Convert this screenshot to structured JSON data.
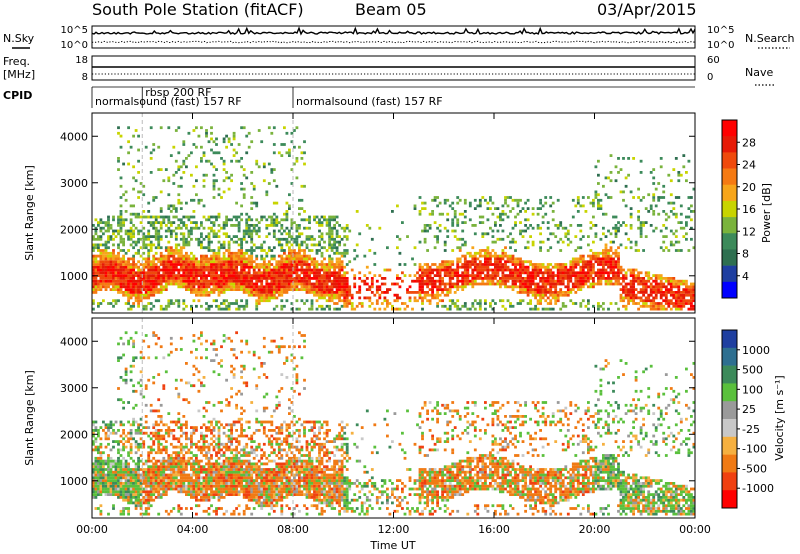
{
  "header": {
    "station": "South Pole Station (fitACF)",
    "beam": "Beam 05",
    "date": "03/Apr/2015"
  },
  "noise_panel": {
    "left_label": "N.Sky",
    "right_label": "N.Search",
    "left_ticks": [
      "10^5",
      "10^0"
    ],
    "right_ticks": [
      "10^5",
      "10^0"
    ]
  },
  "freq_panel": {
    "left_label_1": "Freq.",
    "left_label_2": "[MHz]",
    "right_label": "Nave",
    "left_ticks": [
      "18",
      "8"
    ],
    "right_ticks": [
      "60",
      "0"
    ]
  },
  "cpid": {
    "label": "CPID",
    "segments": [
      {
        "text": "normalsound (fast) 157 RF",
        "start_hour": 0,
        "row": 2
      },
      {
        "text": "rbsp 200 RF",
        "start_hour": 2.0,
        "row": 1
      },
      {
        "text": "normalsound (fast) 157 RF",
        "start_hour": 8.0,
        "row": 2
      }
    ]
  },
  "colors": {
    "power": [
      "#0000ff",
      "#1f3fa0",
      "#2e6f50",
      "#3c8a5a",
      "#7ab33c",
      "#c8d400",
      "#f7a51a",
      "#f57a12",
      "#ef4a0c",
      "#e61a06",
      "#ff0000"
    ],
    "velocity": [
      "#ff0000",
      "#f04010",
      "#f07a14",
      "#f5b040",
      "#c8c8c8",
      "#9a9a9a",
      "#5ac03c",
      "#3c8a5a",
      "#2e6f90",
      "#1f3fa0"
    ]
  },
  "chart_data": [
    {
      "type": "heatmap",
      "name": "Power",
      "ylabel": "Slant Range [km]",
      "xlabel": "",
      "xlim": [
        0,
        24
      ],
      "ylim": [
        200,
        4500
      ],
      "yticks": [
        "1000",
        "2000",
        "3000",
        "4000"
      ],
      "colorbar": {
        "label": "Power [dB]",
        "ticks": [
          "28",
          "24",
          "20",
          "16",
          "12",
          "8",
          "4"
        ],
        "range": [
          0,
          32
        ]
      }
    },
    {
      "type": "heatmap",
      "name": "Velocity",
      "ylabel": "Slant Range [km]",
      "xlabel": "Time UT",
      "xlim": [
        0,
        24
      ],
      "ylim": [
        200,
        4500
      ],
      "xticks": [
        "00:00",
        "04:00",
        "08:00",
        "12:00",
        "16:00",
        "20:00",
        "00:00"
      ],
      "yticks": [
        "1000",
        "2000",
        "3000",
        "4000"
      ],
      "colorbar": {
        "label": "Velocity [m s⁻¹]",
        "ticks": [
          "1000",
          "500",
          "100",
          "25",
          "-25",
          "-100",
          "-500",
          "-1000"
        ]
      }
    }
  ]
}
